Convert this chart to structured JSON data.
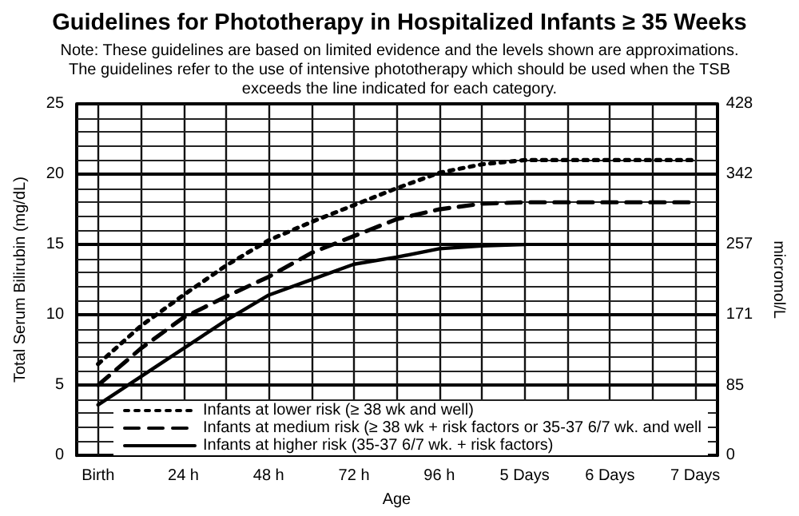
{
  "chart_data": {
    "type": "line",
    "title": "Guidelines for Phototherapy in Hospitalized Infants ≥ 35 Weeks",
    "subtitle": "Note: These guidelines are based on limited evidence and the levels shown are approximations.\nThe guidelines refer to the use of intensive phototherapy which should be used when the TSB\nexceeds the line indicated for each category.",
    "xlabel": "Age",
    "ylabel": "Total Serum Bilirubin (mg/dL)",
    "y2label": "micromol/L",
    "categories": [
      "Birth",
      null,
      "24 h",
      null,
      "48 h",
      null,
      "72 h",
      null,
      "96 h",
      null,
      "5 Days",
      null,
      "6 Days",
      null,
      "7 Days"
    ],
    "ylim": [
      0,
      25
    ],
    "yticks": [
      0,
      5,
      10,
      15,
      20,
      25
    ],
    "y2lim": [
      0,
      428
    ],
    "y2ticks": [
      0,
      85,
      171,
      257,
      342,
      428
    ],
    "grid": true,
    "legend": "bottom left",
    "marker": "none",
    "series": [
      {
        "name": "Infants at lower risk (≥ 38 wk and well)",
        "color": "#000000",
        "line_style": "dotted",
        "values": [
          6.5,
          9.2,
          11.4,
          13.5,
          15.3,
          16.6,
          17.8,
          19,
          20.1,
          20.7,
          21,
          21,
          21,
          21,
          21
        ]
      },
      {
        "name": "Infants at medium risk (≥ 38 wk + risk factors or 35-37 6/7 wk. and well",
        "color": "#000000",
        "line_style": "dashed",
        "values": [
          5,
          7.6,
          9.8,
          11.3,
          12.7,
          14.4,
          15.6,
          16.8,
          17.5,
          17.9,
          18,
          18,
          18,
          18,
          18
        ]
      },
      {
        "name": "Infants at higher risk (35-37 6/7 wk. + risk factors)",
        "color": "#000000",
        "line_style": "solid",
        "values": [
          3.6,
          5.6,
          7.6,
          9.6,
          11.4,
          12.5,
          13.6,
          14.1,
          14.7,
          14.9,
          15,
          null,
          null,
          null,
          null
        ]
      }
    ]
  }
}
